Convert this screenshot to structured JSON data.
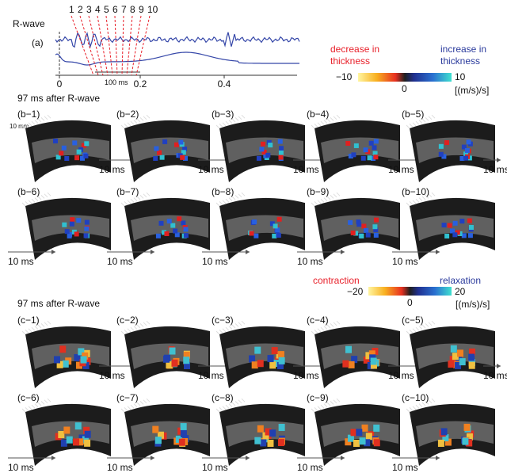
{
  "panel_a": {
    "label": "(a)",
    "signal": "R-wave",
    "markers": [
      "1",
      "2",
      "3",
      "4",
      "5",
      "6",
      "7",
      "8",
      "9",
      "10"
    ],
    "ticks": [
      "0",
      "0.2",
      "0.4"
    ],
    "scale": "100 ms"
  },
  "legend_b": {
    "negative": [
      "decrease in",
      "thickness"
    ],
    "positive": [
      "increase in",
      "thickness"
    ],
    "min": "−10",
    "mid": "0",
    "max": "10",
    "unit": "[(m/s)/s]"
  },
  "section_b": {
    "title": "97 ms after R-wave",
    "scale": "10 mm",
    "step": "10 ms",
    "panels": [
      "(b−1)",
      "(b−2)",
      "(b−3)",
      "(b−4)",
      "(b−5)",
      "(b−6)",
      "(b−7)",
      "(b−8)",
      "(b−9)",
      "(b−10)"
    ]
  },
  "legend_c": {
    "negative": "contraction",
    "positive": "relaxation",
    "min": "−20",
    "mid": "0",
    "max": "20",
    "unit": "[(m/s)/s]"
  },
  "section_c": {
    "title": "97 ms after R-wave",
    "step": "10 ms",
    "panels": [
      "(c−1)",
      "(c−2)",
      "(c−3)",
      "(c−4)",
      "(c−5)",
      "(c−6)",
      "(c−7)",
      "(c−8)",
      "(c−9)",
      "(c−10)"
    ]
  }
}
